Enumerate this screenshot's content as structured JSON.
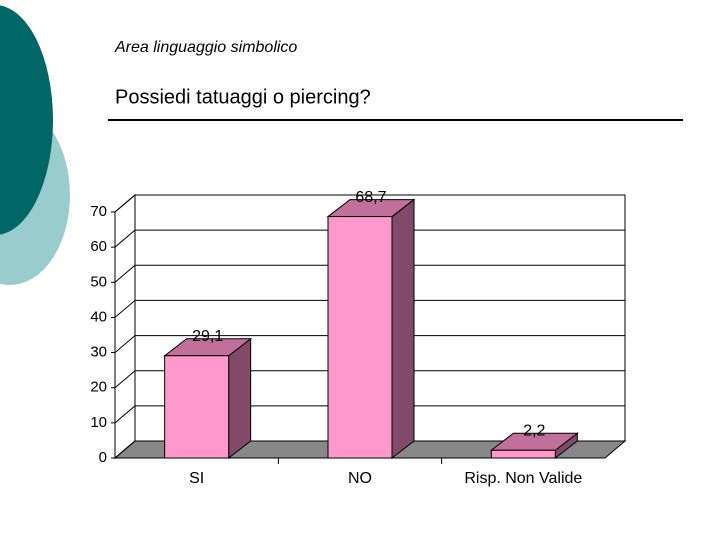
{
  "chart_data": {
    "type": "bar",
    "subtitle": "Area linguaggio simbolico",
    "title": "Possiedi tatuaggi o piercing?",
    "categories": [
      "SI",
      "NO",
      "Risp. Non Valide"
    ],
    "values": [
      29.1,
      68.7,
      2.2
    ],
    "value_labels": [
      "29,1",
      "68,7",
      "2,2"
    ],
    "color": "#ff99cc",
    "ylim": [
      0,
      70
    ],
    "yticks": [
      0,
      10,
      20,
      30,
      40,
      50,
      60,
      70
    ],
    "grid": true
  }
}
